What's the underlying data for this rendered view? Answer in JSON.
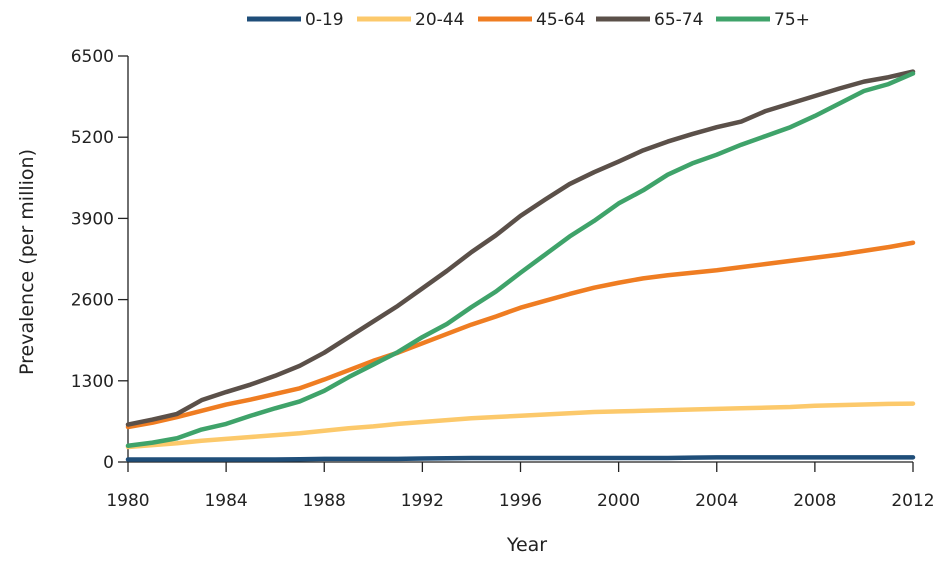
{
  "chart_data": {
    "type": "line",
    "title": "",
    "xlabel": "Year",
    "ylabel": "Prevalence (per million)",
    "xlim": [
      1980,
      2012
    ],
    "ylim": [
      0,
      6500
    ],
    "xticks": [
      1980,
      1984,
      1988,
      1992,
      1996,
      2000,
      2004,
      2008,
      2012
    ],
    "yticks": [
      0,
      1300,
      2600,
      3900,
      5200,
      6500
    ],
    "grid": false,
    "legend_position": "top",
    "x": [
      1980,
      1981,
      1982,
      1983,
      1984,
      1985,
      1986,
      1987,
      1988,
      1989,
      1990,
      1991,
      1992,
      1993,
      1994,
      1995,
      1996,
      1997,
      1998,
      1999,
      2000,
      2001,
      2002,
      2003,
      2004,
      2005,
      2006,
      2007,
      2008,
      2009,
      2010,
      2011,
      2012
    ],
    "series": [
      {
        "name": "0-19",
        "color": "#1f4e79",
        "values": [
          40,
          40,
          40,
          40,
          40,
          40,
          40,
          45,
          50,
          50,
          50,
          50,
          55,
          60,
          65,
          65,
          65,
          65,
          65,
          65,
          65,
          65,
          65,
          70,
          75,
          75,
          75,
          75,
          75,
          75,
          75,
          75,
          75
        ]
      },
      {
        "name": "20-44",
        "color": "#fcc96b",
        "values": [
          240,
          270,
          300,
          340,
          370,
          400,
          430,
          460,
          500,
          540,
          570,
          610,
          640,
          670,
          700,
          720,
          740,
          760,
          780,
          800,
          810,
          820,
          830,
          840,
          850,
          860,
          870,
          880,
          900,
          910,
          920,
          930,
          935
        ]
      },
      {
        "name": "45-64",
        "color": "#ef7d22",
        "values": [
          560,
          630,
          720,
          820,
          920,
          1000,
          1090,
          1180,
          1320,
          1470,
          1620,
          1750,
          1900,
          2050,
          2200,
          2330,
          2470,
          2580,
          2690,
          2790,
          2870,
          2940,
          2990,
          3030,
          3070,
          3120,
          3170,
          3220,
          3270,
          3320,
          3380,
          3440,
          3510
        ]
      },
      {
        "name": "65-74",
        "color": "#5b5049",
        "values": [
          600,
          680,
          770,
          990,
          1120,
          1240,
          1380,
          1540,
          1750,
          2000,
          2250,
          2500,
          2780,
          3060,
          3360,
          3630,
          3940,
          4200,
          4450,
          4640,
          4810,
          4990,
          5130,
          5250,
          5360,
          5450,
          5620,
          5740,
          5860,
          5980,
          6090,
          6160,
          6250
        ]
      },
      {
        "name": "75+",
        "color": "#3fa36a",
        "values": [
          260,
          310,
          380,
          520,
          610,
          740,
          860,
          970,
          1140,
          1360,
          1560,
          1760,
          2000,
          2210,
          2480,
          2730,
          3030,
          3320,
          3610,
          3860,
          4140,
          4350,
          4600,
          4780,
          4920,
          5080,
          5220,
          5360,
          5540,
          5740,
          5940,
          6050,
          6220
        ]
      }
    ]
  }
}
